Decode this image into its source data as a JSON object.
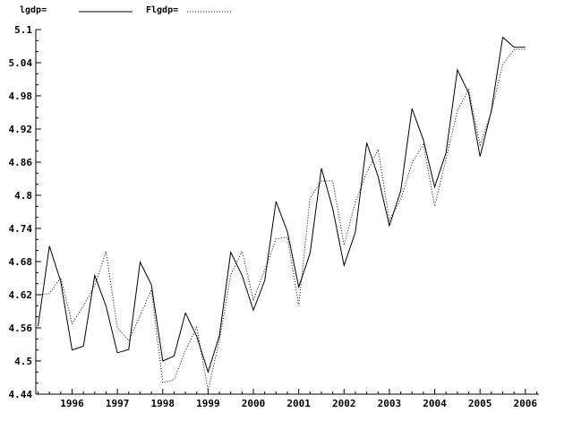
{
  "chart_data": {
    "type": "line",
    "title": "",
    "xlabel": "",
    "ylabel": "",
    "xlim": [
      1995.2,
      2006.3
    ],
    "ylim": [
      4.44,
      5.1
    ],
    "grid": false,
    "legend_position": "top-left",
    "x_ticks": [
      "1996",
      "1997",
      "1998",
      "1999",
      "2000",
      "2001",
      "2002",
      "2003",
      "2004",
      "2005",
      "2006"
    ],
    "y_ticks": [
      "4.44",
      "4.5",
      "4.56",
      "4.62",
      "4.68",
      "4.74",
      "4.8",
      "4.86",
      "4.92",
      "4.98",
      "5.04",
      "5.1"
    ],
    "x": [
      1995.25,
      1995.5,
      1995.75,
      1996,
      1996.25,
      1996.5,
      1996.75,
      1997,
      1997.25,
      1997.5,
      1997.75,
      1998,
      1998.25,
      1998.5,
      1998.75,
      1999,
      1999.25,
      1999.5,
      1999.75,
      2000,
      2000.25,
      2000.5,
      2000.75,
      2001,
      2001.25,
      2001.5,
      2001.75,
      2002,
      2002.25,
      2002.5,
      2002.75,
      2003,
      2003.25,
      2003.5,
      2003.75,
      2004,
      2004.25,
      2004.5,
      2004.75,
      2005,
      2005.25,
      2005.5,
      2005.75,
      2006
    ],
    "series": [
      {
        "name": "lgdp=",
        "style": "solid",
        "color": "#000000",
        "values": [
          4.563,
          4.708,
          4.644,
          4.52,
          4.527,
          4.655,
          4.599,
          4.515,
          4.521,
          4.679,
          4.638,
          4.5,
          4.509,
          4.587,
          4.545,
          4.48,
          4.546,
          4.697,
          4.655,
          4.592,
          4.646,
          4.789,
          4.734,
          4.634,
          4.695,
          4.849,
          4.776,
          4.673,
          4.733,
          4.895,
          4.834,
          4.745,
          4.808,
          4.957,
          4.9,
          4.815,
          4.877,
          5.027,
          4.985,
          4.87,
          4.953,
          5.086,
          5.068,
          5.068
        ]
      },
      {
        "name": "Flgdp=",
        "style": "dotted",
        "color": "#000000",
        "values": [
          4.62,
          4.622,
          4.651,
          4.568,
          4.6,
          4.637,
          4.698,
          4.56,
          4.537,
          4.582,
          4.629,
          4.461,
          4.466,
          4.519,
          4.561,
          4.447,
          4.538,
          4.656,
          4.699,
          4.611,
          4.665,
          4.721,
          4.724,
          4.6,
          4.795,
          4.826,
          4.826,
          4.71,
          4.788,
          4.841,
          4.883,
          4.755,
          4.792,
          4.859,
          4.892,
          4.78,
          4.866,
          4.953,
          4.991,
          4.891,
          4.951,
          5.037,
          5.064,
          5.064
        ]
      }
    ]
  }
}
